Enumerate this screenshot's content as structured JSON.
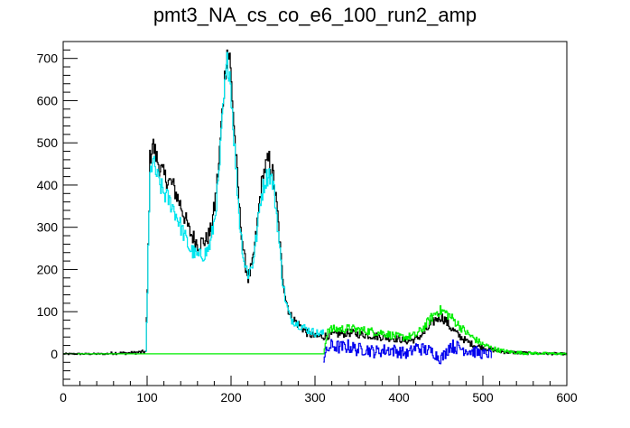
{
  "chart_data": {
    "type": "line",
    "title": "pmt3_NA_cs_co_e6_100_run2_amp",
    "xlabel": "",
    "ylabel": "",
    "xlim": [
      0,
      600
    ],
    "ylim": [
      -75,
      740
    ],
    "grid": false,
    "x_ticks": [
      "0",
      "100",
      "200",
      "300",
      "400",
      "500",
      "600"
    ],
    "y_ticks": [
      "0",
      "100",
      "200",
      "300",
      "400",
      "500",
      "600",
      "700"
    ],
    "series": [
      {
        "color": "#000000",
        "x": [
          0,
          50,
          60,
          80,
          98,
          100,
          103,
          106,
          110,
          115,
          120,
          130,
          140,
          150,
          160,
          170,
          175,
          180,
          185,
          190,
          193,
          195,
          198,
          200,
          205,
          210,
          215,
          220,
          225,
          230,
          235,
          240,
          245,
          250,
          255,
          260,
          265,
          270,
          280,
          290,
          300,
          310,
          320,
          340,
          360,
          380,
          400,
          410,
          420,
          430,
          440,
          445,
          450,
          455,
          460,
          470,
          480,
          490,
          500,
          510,
          520,
          530,
          550,
          570,
          600
        ],
        "y": [
          0,
          0,
          2,
          2,
          5,
          150,
          460,
          500,
          470,
          440,
          420,
          400,
          350,
          290,
          260,
          270,
          290,
          350,
          450,
          600,
          680,
          720,
          700,
          640,
          480,
          330,
          230,
          180,
          210,
          290,
          390,
          440,
          460,
          420,
          330,
          200,
          130,
          90,
          70,
          50,
          40,
          42,
          45,
          50,
          45,
          40,
          35,
          30,
          35,
          50,
          75,
          85,
          88,
          80,
          65,
          45,
          30,
          20,
          15,
          10,
          6,
          4,
          2,
          1,
          0
        ]
      },
      {
        "color": "#00e5ee",
        "x": [
          98,
          100,
          103,
          106,
          110,
          115,
          120,
          130,
          140,
          150,
          160,
          170,
          175,
          180,
          185,
          190,
          193,
          195,
          198,
          200,
          205,
          210,
          215,
          220,
          225,
          230,
          235,
          240,
          245,
          250,
          255,
          260,
          265,
          270,
          280,
          290,
          300,
          310
        ],
        "y": [
          5,
          150,
          420,
          460,
          430,
          400,
          380,
          350,
          300,
          250,
          230,
          240,
          260,
          320,
          420,
          580,
          650,
          690,
          670,
          610,
          450,
          310,
          220,
          190,
          210,
          280,
          370,
          410,
          430,
          400,
          310,
          190,
          120,
          85,
          70,
          58,
          50,
          48
        ]
      },
      {
        "color": "#00ee00",
        "x": [
          0,
          310,
          315,
          320,
          340,
          360,
          380,
          400,
          410,
          420,
          430,
          440,
          445,
          450,
          455,
          460,
          470,
          480,
          490,
          500,
          510,
          520,
          530,
          550,
          570,
          600
        ],
        "y": [
          0,
          0,
          60,
          58,
          60,
          55,
          50,
          40,
          40,
          45,
          65,
          90,
          100,
          102,
          98,
          90,
          70,
          50,
          35,
          22,
          14,
          8,
          5,
          2,
          1,
          0
        ]
      },
      {
        "color": "#0000ee",
        "x": [
          310,
          315,
          320,
          330,
          340,
          350,
          360,
          370,
          380,
          390,
          400,
          410,
          420,
          430,
          440,
          445,
          450,
          455,
          460,
          470,
          480,
          490,
          500,
          510
        ],
        "y": [
          -10,
          12,
          20,
          15,
          18,
          10,
          12,
          5,
          8,
          10,
          5,
          0,
          15,
          10,
          5,
          -5,
          -10,
          0,
          20,
          15,
          10,
          5,
          0,
          0
        ]
      }
    ]
  }
}
